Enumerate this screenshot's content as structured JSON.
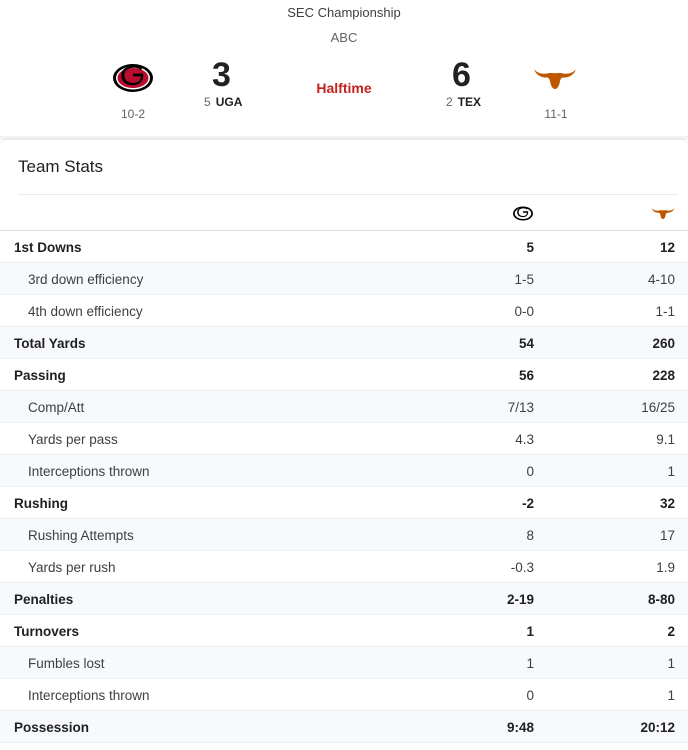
{
  "game": {
    "title": "SEC Championship",
    "network": "ABC",
    "status": "Halftime"
  },
  "home": {
    "logo_icon": "georgia-g-logo-icon",
    "score": "3",
    "seed": "5",
    "abbr": "UGA",
    "record": "10-2",
    "color": "#000000"
  },
  "away": {
    "logo_icon": "texas-longhorn-logo-icon",
    "score": "6",
    "seed": "2",
    "abbr": "TEX",
    "record": "11-1",
    "color": "#bf5700"
  },
  "stats": {
    "heading": "Team Stats",
    "rows": [
      {
        "label": "1st Downs",
        "home": "5",
        "away": "12",
        "kind": "main"
      },
      {
        "label": "3rd down efficiency",
        "home": "1-5",
        "away": "4-10",
        "kind": "sub"
      },
      {
        "label": "4th down efficiency",
        "home": "0-0",
        "away": "1-1",
        "kind": "sub"
      },
      {
        "label": "Total Yards",
        "home": "54",
        "away": "260",
        "kind": "main"
      },
      {
        "label": "Passing",
        "home": "56",
        "away": "228",
        "kind": "main"
      },
      {
        "label": "Comp/Att",
        "home": "7/13",
        "away": "16/25",
        "kind": "sub"
      },
      {
        "label": "Yards per pass",
        "home": "4.3",
        "away": "9.1",
        "kind": "sub"
      },
      {
        "label": "Interceptions thrown",
        "home": "0",
        "away": "1",
        "kind": "sub"
      },
      {
        "label": "Rushing",
        "home": "-2",
        "away": "32",
        "kind": "main"
      },
      {
        "label": "Rushing Attempts",
        "home": "8",
        "away": "17",
        "kind": "sub"
      },
      {
        "label": "Yards per rush",
        "home": "-0.3",
        "away": "1.9",
        "kind": "sub"
      },
      {
        "label": "Penalties",
        "home": "2-19",
        "away": "8-80",
        "kind": "main"
      },
      {
        "label": "Turnovers",
        "home": "1",
        "away": "2",
        "kind": "main"
      },
      {
        "label": "Fumbles lost",
        "home": "1",
        "away": "1",
        "kind": "sub"
      },
      {
        "label": "Interceptions thrown",
        "home": "0",
        "away": "1",
        "kind": "sub"
      },
      {
        "label": "Possession",
        "home": "9:48",
        "away": "20:12",
        "kind": "main"
      }
    ]
  }
}
